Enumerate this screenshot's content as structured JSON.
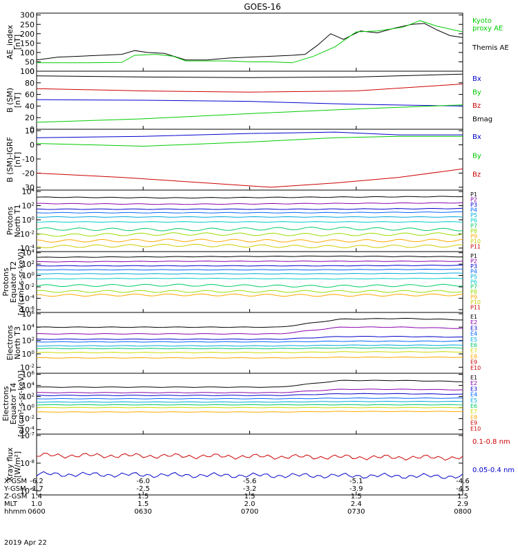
{
  "figure": {
    "title": "GOES-16",
    "date": "2019 Apr 22"
  },
  "chart_data": [
    {
      "type": "line",
      "id": "ae",
      "ylabel": "AE_index\n[nT]",
      "yticks": [
        "300",
        "250",
        "200",
        "150",
        "100",
        "50",
        "0"
      ],
      "ylim": [
        0,
        310
      ],
      "legend": [
        {
          "text": "Kyoto\nproxy AE",
          "color": "#00cc00"
        },
        {
          "text": "Themis AE",
          "color": "#000000"
        }
      ],
      "series": [
        {
          "name": "Themis AE",
          "color": "#000000",
          "x": [
            0,
            0.05,
            0.1,
            0.15,
            0.2,
            0.23,
            0.26,
            0.3,
            0.35,
            0.4,
            0.45,
            0.5,
            0.55,
            0.6,
            0.63,
            0.66,
            0.69,
            0.72,
            0.76,
            0.8,
            0.84,
            0.88,
            0.91,
            0.94,
            0.97,
            1.0
          ],
          "y": [
            60,
            75,
            80,
            85,
            90,
            110,
            100,
            95,
            60,
            60,
            70,
            75,
            80,
            85,
            90,
            140,
            200,
            170,
            215,
            205,
            230,
            250,
            255,
            220,
            190,
            180
          ]
        },
        {
          "name": "Kyoto proxy AE",
          "color": "#00cc00",
          "x": [
            0,
            0.1,
            0.2,
            0.23,
            0.28,
            0.32,
            0.35,
            0.45,
            0.5,
            0.55,
            0.6,
            0.65,
            0.7,
            0.75,
            0.8,
            0.86,
            0.9,
            0.94,
            1.0
          ],
          "y": [
            45,
            45,
            47,
            85,
            90,
            80,
            55,
            55,
            50,
            50,
            45,
            80,
            130,
            210,
            215,
            235,
            270,
            240,
            210
          ]
        }
      ]
    },
    {
      "type": "line",
      "id": "bsm",
      "ylabel": "B (SM)\n[nT]",
      "yticks": [
        "100",
        "80",
        "60",
        "40",
        "20",
        "0"
      ],
      "ylim": [
        0,
        100
      ],
      "legend": [
        {
          "text": "Bx",
          "color": "#0000cc"
        },
        {
          "text": "By",
          "color": "#00cc00"
        },
        {
          "text": "Bz",
          "color": "#cc0000"
        },
        {
          "text": "Bmag",
          "color": "#000000"
        }
      ],
      "series": [
        {
          "name": "Bmag",
          "color": "#000000",
          "x": [
            0,
            0.25,
            0.5,
            0.75,
            1.0
          ],
          "y": [
            92,
            90,
            89,
            90,
            95
          ]
        },
        {
          "name": "Bz",
          "color": "#cc0000",
          "x": [
            0,
            0.25,
            0.5,
            0.75,
            1.0
          ],
          "y": [
            70,
            66,
            64,
            66,
            78
          ]
        },
        {
          "name": "Bx",
          "color": "#0000cc",
          "x": [
            0,
            0.25,
            0.5,
            0.75,
            1.0
          ],
          "y": [
            51,
            50,
            48,
            43,
            40
          ]
        },
        {
          "name": "By",
          "color": "#00cc00",
          "x": [
            0,
            0.25,
            0.5,
            0.75,
            1.0
          ],
          "y": [
            12,
            18,
            27,
            35,
            42
          ]
        }
      ]
    },
    {
      "type": "line",
      "id": "bigrf",
      "ylabel": "B (SM)-IGRF\n[nT]",
      "yticks": [
        "10",
        "0",
        "-10",
        "-20",
        "-30"
      ],
      "ylim": [
        -32,
        11
      ],
      "legend": [
        {
          "text": "Bx",
          "color": "#0000cc"
        },
        {
          "text": "By",
          "color": "#00cc00"
        },
        {
          "text": "Bz",
          "color": "#cc0000"
        }
      ],
      "series": [
        {
          "name": "Bx",
          "color": "#0000cc",
          "x": [
            0,
            0.25,
            0.5,
            0.7,
            0.85,
            1.0
          ],
          "y": [
            5,
            6,
            8,
            9,
            7,
            7
          ]
        },
        {
          "name": "By",
          "color": "#00cc00",
          "x": [
            0,
            0.25,
            0.5,
            0.7,
            0.85,
            1.0
          ],
          "y": [
            1,
            -1,
            2,
            5,
            6,
            6
          ]
        },
        {
          "name": "Bz",
          "color": "#cc0000",
          "x": [
            0,
            0.2,
            0.4,
            0.55,
            0.7,
            0.85,
            1.0
          ],
          "y": [
            -20,
            -23,
            -27,
            -30,
            -27,
            -23,
            -17
          ]
        }
      ]
    },
    {
      "type": "line",
      "id": "pnorth",
      "scale": "log",
      "ylabel": "Protons\nNorth T1",
      "yticks": [
        "10^4",
        "10^2",
        "10^0",
        "10^-2",
        "10^-4"
      ],
      "ylim_exp": [
        -4.5,
        4.2
      ],
      "channels": [
        {
          "name": "P1",
          "color": "#000000",
          "values": [
            3.2,
            3.1,
            3.2,
            3.3
          ]
        },
        {
          "name": "P2",
          "color": "#8800aa",
          "values": [
            2.3,
            2.2,
            2.3,
            2.4
          ]
        },
        {
          "name": "P3",
          "color": "#0000cc",
          "values": [
            1.5,
            1.5,
            1.5,
            1.6
          ]
        },
        {
          "name": "P4",
          "color": "#0066ff",
          "values": [
            1.0,
            1.0,
            1.0,
            1.1
          ]
        },
        {
          "name": "P5",
          "color": "#00aadd",
          "values": [
            0.4,
            0.4,
            0.4,
            0.4
          ]
        },
        {
          "name": "P6",
          "color": "#00cccc",
          "values": [
            -0.3,
            -0.3,
            -0.3,
            -0.3
          ]
        },
        {
          "name": "P7",
          "color": "#00cc66",
          "values": [
            -1.3,
            -1.4,
            -1.2,
            -1.4
          ]
        },
        {
          "name": "P8",
          "color": "#99dd00",
          "values": [
            -2.2,
            -2.0,
            -2.1,
            -2.0
          ]
        },
        {
          "name": "P9",
          "color": "#ffaa00",
          "values": [
            -3.0,
            -2.9,
            -3.0,
            -2.9
          ]
        },
        {
          "name": "P10",
          "color": "#cccc00",
          "values": [
            -3.8,
            -3.6,
            -3.8,
            -3.7
          ]
        },
        {
          "name": "P11",
          "color": "#cc0000",
          "values": []
        }
      ]
    },
    {
      "type": "line",
      "id": "peq",
      "scale": "log",
      "ylabel": "Protons\nEquator T2\n[p/(cm²-s-sr-keV)]",
      "yticks": [
        "10^4",
        "10^2",
        "10^0",
        "10^-2",
        "10^-4",
        "10^-6"
      ],
      "ylim_exp": [
        -6.5,
        4.2
      ],
      "channels": [
        {
          "name": "P1",
          "color": "#000000",
          "values": [
            3.2,
            3.3,
            3.4,
            3.3
          ]
        },
        {
          "name": "P2",
          "color": "#8800aa",
          "values": [
            2.4,
            2.5,
            2.5,
            2.5
          ]
        },
        {
          "name": "P3",
          "color": "#0000cc",
          "values": [
            1.7,
            1.7,
            1.7,
            1.8
          ]
        },
        {
          "name": "P4",
          "color": "#0066ff",
          "values": [
            1.0,
            1.0,
            1.0,
            1.1
          ]
        },
        {
          "name": "P5",
          "color": "#00aadd",
          "values": [
            0.3,
            0.3,
            0.3,
            0.4
          ]
        },
        {
          "name": "P6",
          "color": "#00cccc",
          "values": [
            -0.6,
            -0.5,
            -0.6,
            -0.5
          ]
        },
        {
          "name": "P7",
          "color": "#00cc66",
          "values": [
            -1.8,
            -1.7,
            -1.9,
            -1.7
          ]
        },
        {
          "name": "P8",
          "color": "#99dd00",
          "values": [
            -2.8,
            -2.8,
            -2.8,
            -2.8
          ]
        },
        {
          "name": "P9",
          "color": "#ffaa00",
          "values": [
            -3.5,
            -3.4,
            -3.5,
            -3.4
          ]
        },
        {
          "name": "P10",
          "color": "#cccc00",
          "values": []
        },
        {
          "name": "P11",
          "color": "#cc0000",
          "values": []
        }
      ]
    },
    {
      "type": "line",
      "id": "enorth",
      "scale": "log",
      "ylabel": "Electrons\nNorth T3",
      "yticks": [
        "10^6",
        "10^4",
        "10^2",
        "10^0",
        "10^-2"
      ],
      "ylim_exp": [
        -2.9,
        6.2
      ],
      "channels": [
        {
          "name": "E1",
          "color": "#000000",
          "values": [
            4.0,
            4.0,
            4.0,
            4.0,
            4.0,
            5.2,
            5.3,
            5.1
          ]
        },
        {
          "name": "E2",
          "color": "#8800aa",
          "values": [
            3.0,
            3.0,
            3.0,
            3.0,
            3.0,
            4.0,
            4.0,
            3.8
          ]
        },
        {
          "name": "E3",
          "color": "#0000cc",
          "values": [
            2.2,
            2.2,
            2.2,
            2.2,
            2.2,
            2.6,
            2.6,
            2.5
          ]
        },
        {
          "name": "E4",
          "color": "#0066ff",
          "values": [
            1.8,
            1.8,
            1.8,
            1.8,
            1.8,
            1.9,
            1.9,
            1.9
          ]
        },
        {
          "name": "E5",
          "color": "#00aadd",
          "values": [
            1.2,
            1.2,
            1.2,
            1.2,
            1.2,
            1.3,
            1.3,
            1.3
          ]
        },
        {
          "name": "E6",
          "color": "#00cc66",
          "values": [
            0.8,
            0.8,
            0.8,
            0.8,
            0.8,
            0.9,
            0.9,
            0.9
          ]
        },
        {
          "name": "E7",
          "color": "#ccdd00",
          "values": [
            0.2,
            0.2,
            0.2,
            0.2,
            0.2,
            0.3,
            0.3,
            0.3
          ]
        },
        {
          "name": "E8",
          "color": "#ffaa00",
          "values": [
            -0.6,
            -0.6,
            -0.6,
            -0.6,
            -0.6,
            -0.5,
            -0.5,
            -0.5
          ]
        },
        {
          "name": "E9",
          "color": "#cc0000",
          "values": []
        },
        {
          "name": "E10",
          "color": "#cc0000",
          "values": []
        }
      ]
    },
    {
      "type": "line",
      "id": "eeq",
      "scale": "log",
      "ylabel": "Electrons\nEquator T4\n[e/(cm²-s-sr-keV)]",
      "yticks": [
        "10^6",
        "10^4",
        "10^2",
        "10^0",
        "10^-2",
        "10^-4"
      ],
      "ylim_exp": [
        -4.8,
        6.2
      ],
      "channels": [
        {
          "name": "E1",
          "color": "#000000",
          "values": [
            3.7,
            3.7,
            3.7,
            3.7,
            3.7,
            4.9,
            4.9,
            4.7
          ]
        },
        {
          "name": "E2",
          "color": "#8800aa",
          "values": [
            2.7,
            2.7,
            2.7,
            2.7,
            2.7,
            3.3,
            3.3,
            3.2
          ]
        },
        {
          "name": "E3",
          "color": "#0000cc",
          "values": [
            2.2,
            2.2,
            2.2,
            2.2,
            2.2,
            2.5,
            2.5,
            2.4
          ]
        },
        {
          "name": "E4",
          "color": "#0066ff",
          "values": [
            1.6,
            1.6,
            1.6,
            1.6,
            1.6,
            1.7,
            1.7,
            1.7
          ]
        },
        {
          "name": "E5",
          "color": "#00aadd",
          "values": [
            1.0,
            1.0,
            1.0,
            1.0,
            1.0,
            1.1,
            1.1,
            1.1
          ]
        },
        {
          "name": "E6",
          "color": "#00cc66",
          "values": [
            0.5,
            0.5,
            0.5,
            0.5,
            0.5,
            0.5,
            0.5,
            0.5
          ]
        },
        {
          "name": "E7",
          "color": "#ccdd00",
          "values": [
            0.0,
            0.0,
            0.0,
            0.0,
            0.0,
            0.0,
            0.0,
            0.0
          ]
        },
        {
          "name": "E8",
          "color": "#ffaa00",
          "values": [
            -0.8,
            -0.8,
            -0.8,
            -0.8,
            -0.8,
            -0.7,
            -0.7,
            -0.7
          ]
        },
        {
          "name": "E9",
          "color": "#cc0000",
          "values": []
        },
        {
          "name": "E10",
          "color": "#cc0000",
          "values": []
        }
      ]
    },
    {
      "type": "line",
      "id": "xray",
      "scale": "log",
      "ylabel": "Xray flux\n[W/m²]",
      "yticks": [
        "10^-7",
        "10^-8",
        "10^-9"
      ],
      "ylim_exp": [
        -9.15,
        -6.95
      ],
      "legend": [
        {
          "text": "0.1-0.8 nm",
          "color": "#cc0000"
        },
        {
          "text": "0.05-0.4 nm",
          "color": "#0000cc"
        }
      ],
      "series": [
        {
          "name": "0.1-0.8 nm",
          "color": "#cc0000",
          "values": [
            -7.72,
            -7.73,
            -7.75,
            -7.77,
            -7.79,
            -7.8
          ]
        },
        {
          "name": "0.05-0.4 nm",
          "color": "#0000cc",
          "values": [
            -8.4,
            -8.42,
            -8.44,
            -8.45,
            -8.46,
            -8.48
          ]
        }
      ]
    }
  ],
  "x_axis": {
    "rows": [
      {
        "label": "X-GSM",
        "values": [
          "-6.2",
          "-6.0",
          "-5.6",
          "-5.1",
          "-4.6"
        ]
      },
      {
        "label": "Y-GSM",
        "values": [
          "-1.7",
          "-2.5",
          "-3.2",
          "-3.9",
          "-4.5"
        ]
      },
      {
        "label": "Z-GSM",
        "values": [
          "1.4",
          "1.5",
          "1.5",
          "1.5",
          "1.5"
        ]
      },
      {
        "label": "MLT",
        "values": [
          "1.0",
          "1.5",
          "2.0",
          "2.4",
          "2.9"
        ]
      },
      {
        "label": "hhmm",
        "values": [
          "0600",
          "0630",
          "0700",
          "0730",
          "0800"
        ]
      }
    ]
  }
}
